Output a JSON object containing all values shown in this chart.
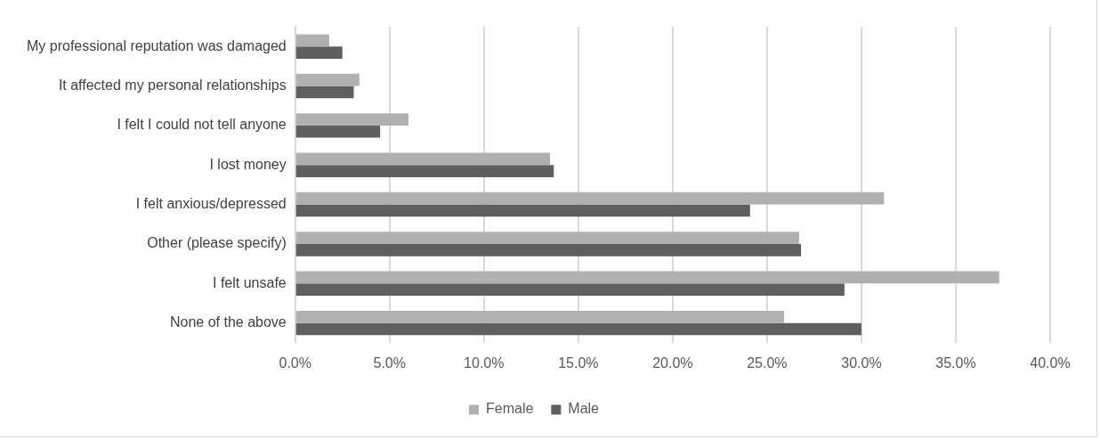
{
  "chart_data": {
    "type": "bar",
    "orientation": "horizontal",
    "categories": [
      "My professional reputation was damaged",
      "It affected my personal relationships",
      "I felt I could not tell anyone",
      "I lost money",
      "I felt anxious/depressed",
      "Other (please specify)",
      "I felt unsafe",
      "None of the above"
    ],
    "series": [
      {
        "name": "Female",
        "color": "#b0b0b0",
        "values": [
          1.8,
          3.4,
          6.0,
          13.5,
          31.2,
          26.7,
          37.3,
          25.9
        ]
      },
      {
        "name": "Male",
        "color": "#5f5f5f",
        "values": [
          2.5,
          3.1,
          4.5,
          13.7,
          24.1,
          26.8,
          29.1,
          30.0
        ]
      }
    ],
    "xlim": [
      0,
      40
    ],
    "xticks": [
      {
        "value": 0,
        "label": "0.0%"
      },
      {
        "value": 5,
        "label": "5.0%"
      },
      {
        "value": 10,
        "label": "10.0%"
      },
      {
        "value": 15,
        "label": "15.0%"
      },
      {
        "value": 20,
        "label": "20.0%"
      },
      {
        "value": 25,
        "label": "25.0%"
      },
      {
        "value": 30,
        "label": "30.0%"
      },
      {
        "value": 35,
        "label": "35.0%"
      },
      {
        "value": 40,
        "label": "40.0%"
      }
    ],
    "grid": "x",
    "legend": "bottom"
  }
}
